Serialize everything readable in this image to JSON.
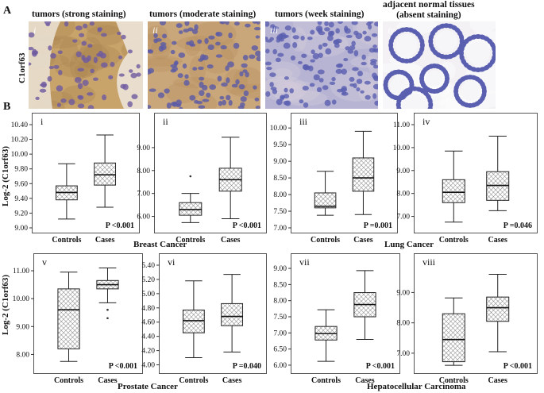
{
  "panelA": {
    "label": "A",
    "ylabel": "C1orf63",
    "headers": [
      "tumors (strong staining)",
      "tumors (moderate staining)",
      "tumors (week staining)",
      "adjacent normal tissues\n(absent staining)"
    ],
    "roman": [
      "i",
      "ii",
      "iii",
      "iv"
    ],
    "colors": {
      "strong_bg": "#c8a36a",
      "moderate_bg": "#c9a77a",
      "weak_bg": "#b7b4d3",
      "normal_bg": "#f3f1f4",
      "nuclei": "#5a5fb0"
    }
  },
  "panelB": {
    "label": "B",
    "ylabel": "Log-2 (C1orf63)",
    "cancers": [
      "Breast Cancer",
      "Lung Cancer",
      "Prostate Cancer",
      "Hepatocellular Carcinoma"
    ]
  },
  "chart_data": [
    {
      "type": "box",
      "panel": "i",
      "categories": [
        "Controls",
        "Cases"
      ],
      "ylim": [
        9.0,
        10.4
      ],
      "yticks": [
        "9.00",
        "9.20",
        "9.40",
        "9.60",
        "9.80",
        "10.00",
        "10.20",
        "10.40"
      ],
      "p": "P <0.001",
      "boxes": [
        {
          "min": 9.12,
          "q1": 9.38,
          "median": 9.48,
          "q3": 9.57,
          "max": 9.87
        },
        {
          "min": 9.28,
          "q1": 9.58,
          "median": 9.72,
          "q3": 9.88,
          "max": 10.26
        }
      ],
      "outliers": [
        [],
        []
      ]
    },
    {
      "type": "box",
      "panel": "ii",
      "categories": [
        "Controls",
        "Cases"
      ],
      "ylim": [
        5.5,
        10.0
      ],
      "yticks": [
        "6.00",
        "7.00",
        "8.00",
        "9.00"
      ],
      "p": "P <0.001",
      "boxes": [
        {
          "min": 5.73,
          "q1": 6.05,
          "median": 6.3,
          "q3": 6.6,
          "max": 7.0
        },
        {
          "min": 5.9,
          "q1": 7.1,
          "median": 7.6,
          "q3": 8.1,
          "max": 9.45
        }
      ],
      "outliers": [
        [
          7.75
        ],
        []
      ]
    },
    {
      "type": "box",
      "panel": "iii",
      "categories": [
        "Controls",
        "Cases"
      ],
      "ylim": [
        7.0,
        10.1
      ],
      "yticks": [
        "7.00",
        "7.50",
        "8.00",
        "8.50",
        "9.00",
        "9.50",
        "10.00"
      ],
      "p": "P =0.001",
      "boxes": [
        {
          "min": 7.38,
          "q1": 7.6,
          "median": 7.65,
          "q3": 8.05,
          "max": 8.7
        },
        {
          "min": 7.4,
          "q1": 8.1,
          "median": 8.5,
          "q3": 9.1,
          "max": 9.9
        }
      ],
      "outliers": [
        [],
        []
      ]
    },
    {
      "type": "box",
      "panel": "iv",
      "categories": [
        "Controls",
        "Cases"
      ],
      "ylim": [
        6.5,
        11.0
      ],
      "yticks": [
        "7.00",
        "8.00",
        "9.00",
        "10.00",
        "11.00"
      ],
      "p": "P =0.046",
      "boxes": [
        {
          "min": 6.75,
          "q1": 7.6,
          "median": 8.05,
          "q3": 8.6,
          "max": 9.85
        },
        {
          "min": 7.25,
          "q1": 7.7,
          "median": 8.35,
          "q3": 8.95,
          "max": 10.5
        }
      ],
      "outliers": [
        [],
        []
      ]
    },
    {
      "type": "box",
      "panel": "v",
      "categories": [
        "Controls",
        "Cases"
      ],
      "ylim": [
        7.5,
        11.2
      ],
      "yticks": [
        "8.00",
        "9.00",
        "10.00",
        "11.00"
      ],
      "p": "P <0.001",
      "boxes": [
        {
          "min": 7.75,
          "q1": 8.2,
          "median": 9.6,
          "q3": 10.35,
          "max": 10.95
        },
        {
          "min": 9.85,
          "q1": 10.35,
          "median": 10.5,
          "q3": 10.65,
          "max": 11.1
        }
      ],
      "outliers": [
        [],
        [
          9.6,
          9.3
        ]
      ]
    },
    {
      "type": "box",
      "panel": "vi",
      "categories": [
        "Controls",
        "Cases"
      ],
      "ylim": [
        3.95,
        5.4
      ],
      "yticks": [
        "4.00",
        "4.20",
        "4.40",
        "4.60",
        "4.80",
        "5.00",
        "5.20",
        "5.40"
      ],
      "p": "P =0.040",
      "boxes": [
        {
          "min": 4.1,
          "q1": 4.45,
          "median": 4.62,
          "q3": 4.77,
          "max": 5.18
        },
        {
          "min": 4.18,
          "q1": 4.55,
          "median": 4.68,
          "q3": 4.86,
          "max": 5.27
        }
      ],
      "outliers": [
        [],
        []
      ]
    },
    {
      "type": "box",
      "panel": "vii",
      "categories": [
        "Controls",
        "Cases"
      ],
      "ylim": [
        5.9,
        9.1
      ],
      "yticks": [
        "6.00",
        "6.50",
        "7.00",
        "7.50",
        "8.00",
        "8.50",
        "9.00"
      ],
      "p": "P <0.001",
      "boxes": [
        {
          "min": 6.12,
          "q1": 6.78,
          "median": 6.98,
          "q3": 7.2,
          "max": 7.72
        },
        {
          "min": 6.8,
          "q1": 7.5,
          "median": 7.88,
          "q3": 8.25,
          "max": 8.93
        }
      ],
      "outliers": [
        [],
        []
      ]
    },
    {
      "type": "box",
      "panel": "viii",
      "categories": [
        "Controls",
        "Cases"
      ],
      "ylim": [
        6.5,
        9.9
      ],
      "yticks": [
        "7.00",
        "8.00",
        "9.00"
      ],
      "p": "P <0.001",
      "boxes": [
        {
          "min": 6.6,
          "q1": 6.72,
          "median": 7.45,
          "q3": 8.3,
          "max": 8.82
        },
        {
          "min": 7.05,
          "q1": 8.05,
          "median": 8.5,
          "q3": 8.85,
          "max": 9.6
        }
      ],
      "outliers": [
        [],
        []
      ]
    }
  ]
}
